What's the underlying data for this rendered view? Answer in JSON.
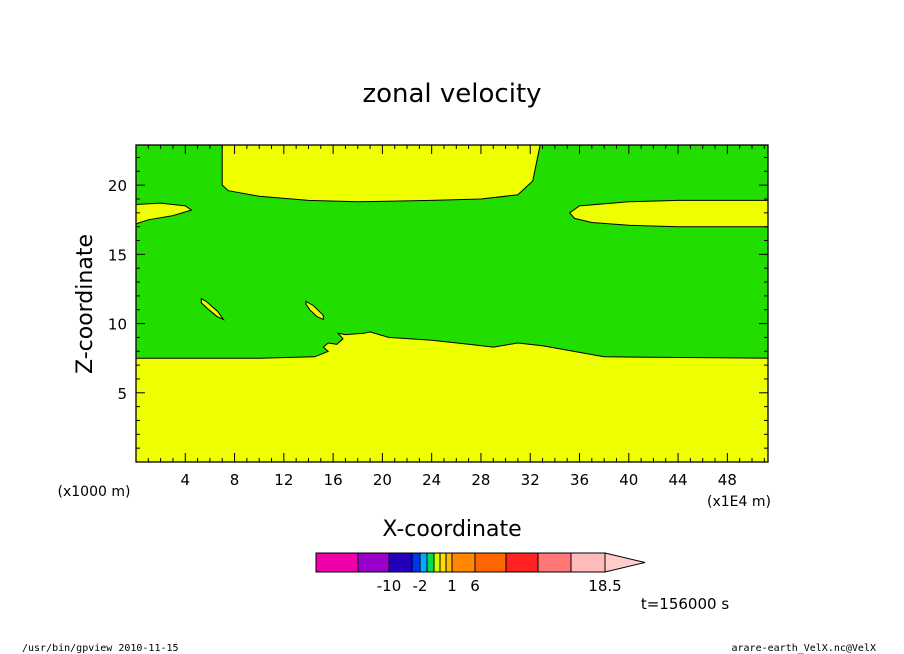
{
  "chart_data": {
    "type": "heatmap",
    "title": "zonal velocity",
    "xlabel": "X-coordinate",
    "ylabel": "Z-coordinate",
    "x_unit_label": "(x1E4 m)",
    "y_unit_label": "(x1000 m)",
    "xlim": [
      0,
      51.3
    ],
    "ylim": [
      0,
      22.9
    ],
    "x_ticks": [
      "4",
      "8",
      "12",
      "16",
      "20",
      "24",
      "28",
      "32",
      "36",
      "40",
      "44",
      "48"
    ],
    "y_ticks": [
      "5",
      "10",
      "15",
      "20"
    ],
    "grid": false,
    "fill_levels": {
      "background": "#22dd00",
      "positive": "#eeff00"
    },
    "regions": [
      {
        "name": "lower-positive-region",
        "level_color": "#eeff00",
        "boundary": [
          [
            0,
            0
          ],
          [
            0,
            7.5
          ],
          [
            10,
            7.5
          ],
          [
            14.5,
            7.6
          ],
          [
            15.6,
            8.0
          ],
          [
            15.2,
            8.3
          ],
          [
            15.6,
            8.6
          ],
          [
            16.3,
            8.5
          ],
          [
            16.8,
            8.9
          ],
          [
            16.4,
            9.3
          ],
          [
            17.0,
            9.2
          ],
          [
            18.5,
            9.3
          ],
          [
            19.0,
            9.4
          ],
          [
            20.5,
            9.0
          ],
          [
            24,
            8.8
          ],
          [
            27,
            8.5
          ],
          [
            29,
            8.3
          ],
          [
            31,
            8.6
          ],
          [
            33,
            8.4
          ],
          [
            35.5,
            8.0
          ],
          [
            38,
            7.6
          ],
          [
            51.3,
            7.5
          ],
          [
            51.3,
            0
          ]
        ]
      },
      {
        "name": "upper-positive-region",
        "level_color": "#eeff00",
        "boundary": [
          [
            7.0,
            22.9
          ],
          [
            7.0,
            20.0
          ],
          [
            7.5,
            19.6
          ],
          [
            10,
            19.2
          ],
          [
            14,
            18.9
          ],
          [
            18,
            18.8
          ],
          [
            24,
            18.9
          ],
          [
            28,
            19.0
          ],
          [
            31,
            19.3
          ],
          [
            32.2,
            20.3
          ],
          [
            32.6,
            22.0
          ],
          [
            32.8,
            22.9
          ]
        ]
      },
      {
        "name": "left-edge-lens",
        "level_color": "#eeff00",
        "boundary": [
          [
            0,
            18.6
          ],
          [
            2,
            18.7
          ],
          [
            4,
            18.5
          ],
          [
            4.5,
            18.2
          ],
          [
            3,
            17.8
          ],
          [
            1,
            17.5
          ],
          [
            0,
            17.2
          ]
        ]
      },
      {
        "name": "right-lens",
        "level_color": "#eeff00",
        "boundary": [
          [
            35.2,
            18.0
          ],
          [
            36,
            18.5
          ],
          [
            40,
            18.8
          ],
          [
            44,
            18.9
          ],
          [
            51.3,
            18.9
          ],
          [
            51.3,
            17.0
          ],
          [
            44,
            17.0
          ],
          [
            40,
            17.1
          ],
          [
            37,
            17.3
          ],
          [
            35.6,
            17.6
          ]
        ]
      },
      {
        "name": "small-lens-left",
        "level_color": "#eeff00",
        "boundary": [
          [
            5.3,
            11.8
          ],
          [
            5.7,
            11.6
          ],
          [
            6.6,
            10.9
          ],
          [
            7.1,
            10.3
          ],
          [
            6.6,
            10.5
          ],
          [
            5.9,
            11.0
          ],
          [
            5.3,
            11.5
          ]
        ]
      },
      {
        "name": "small-lens-right",
        "level_color": "#eeff00",
        "boundary": [
          [
            13.8,
            11.6
          ],
          [
            14.4,
            11.3
          ],
          [
            15.2,
            10.6
          ],
          [
            15.2,
            10.3
          ],
          [
            14.7,
            10.5
          ],
          [
            14.1,
            11.0
          ],
          [
            13.8,
            11.4
          ]
        ]
      }
    ],
    "legend": {
      "placement": "bottom-center",
      "extends": "right",
      "boxes": [
        "#ee00aa",
        "#9900cc",
        "#2200bb",
        "#0033ee",
        "#00aaff",
        "#00dd55",
        "#ccff00",
        "#ffdd00",
        "#ffbb00",
        "#ff8800",
        "#ff6600",
        "#ff2222",
        "#ff7777",
        "#ffbbbb"
      ],
      "extension_color": "#ffcccc",
      "labels": [
        "-10",
        "-2",
        "1",
        "6",
        "18.5"
      ]
    },
    "time_label": "t=156000 s"
  },
  "footer": {
    "left": "/usr/bin/gpview   2010-11-15",
    "right": "arare-earth_VelX.nc@VelX"
  }
}
